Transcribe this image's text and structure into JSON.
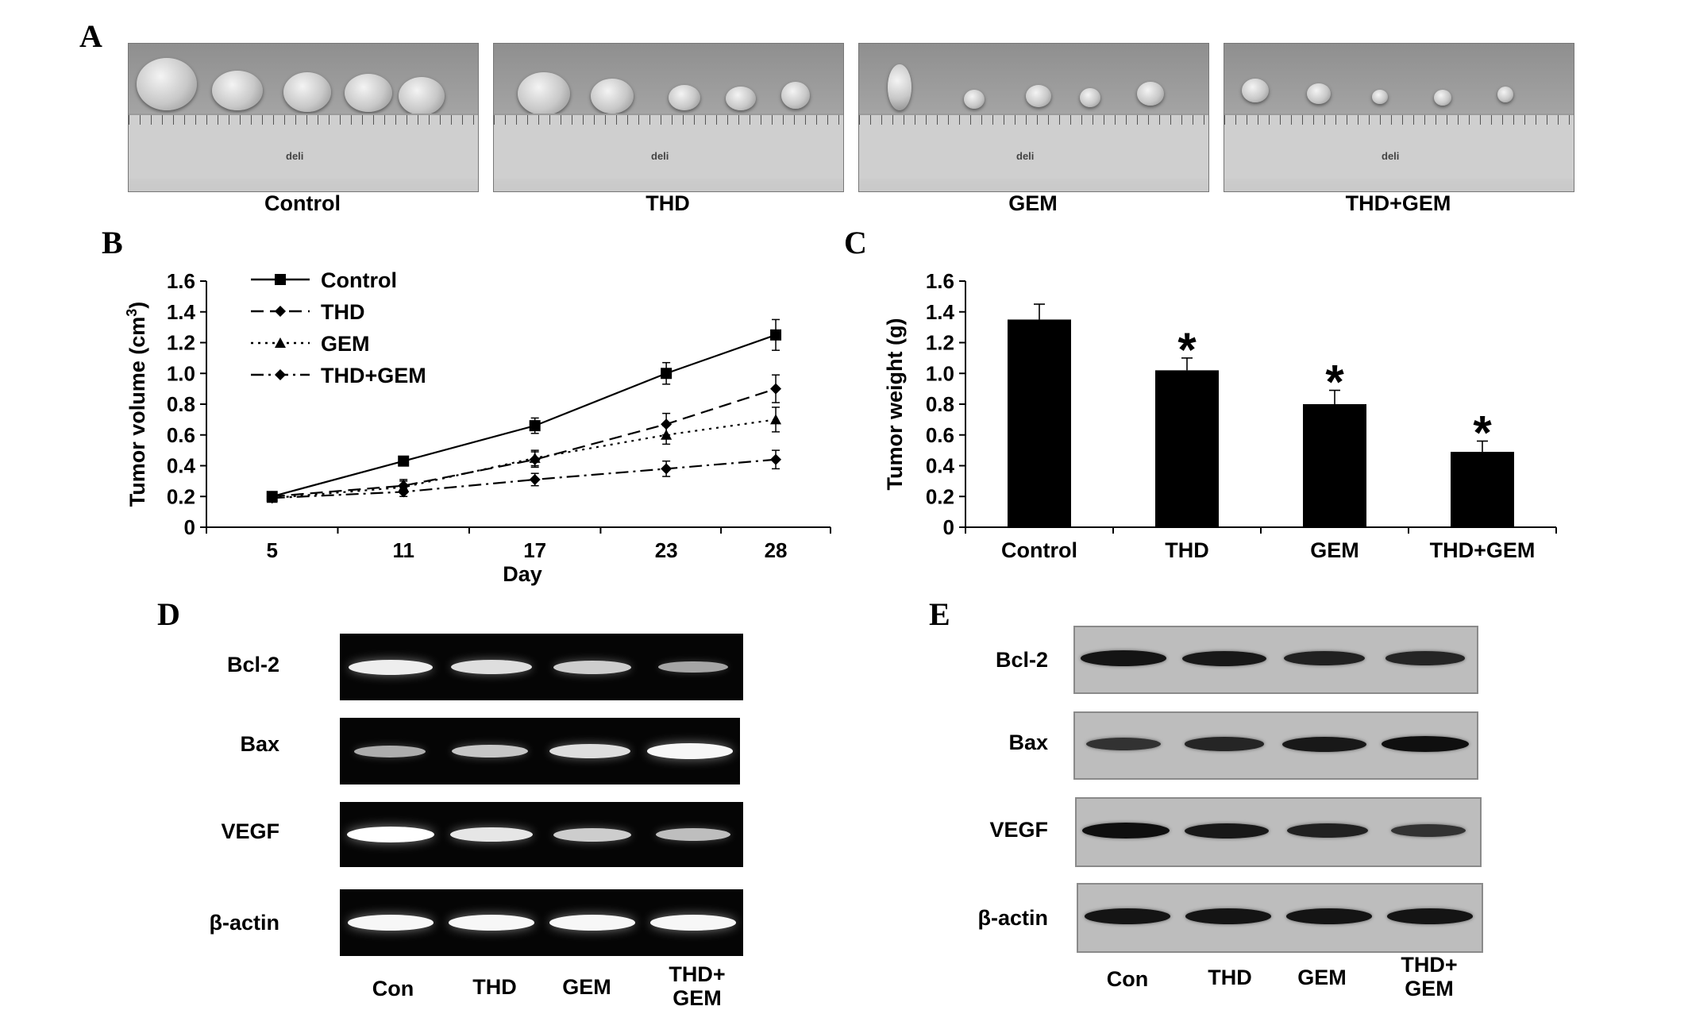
{
  "panels": {
    "a": "A",
    "b": "B",
    "c": "C",
    "d": "D",
    "e": "E"
  },
  "photos": {
    "labels": [
      "Control",
      "THD",
      "GEM",
      "THD+GEM"
    ],
    "ruler_brand": "deli"
  },
  "chart_data": [
    {
      "type": "line",
      "xlabel": "Day",
      "ylabel": "Tumor volume (cm",
      "ylabel_sup": "3",
      "ylabel_close": ")",
      "x": [
        5,
        11,
        17,
        23,
        28
      ],
      "xlim": [
        2,
        30.5
      ],
      "ylim": [
        0,
        1.6
      ],
      "yticks": [
        "0",
        "0.2",
        "0.4",
        "0.6",
        "0.8",
        "1.0",
        "1.2",
        "1.4",
        "1.6"
      ],
      "xticks": [
        "5",
        "11",
        "17",
        "23",
        "28"
      ],
      "legend_position": "top-left",
      "grid": false,
      "series": [
        {
          "name": "Control",
          "values": [
            0.2,
            0.43,
            0.66,
            1.0,
            1.25
          ],
          "errors": [
            0.02,
            0.03,
            0.05,
            0.07,
            0.1
          ],
          "style": "solid",
          "marker": "square"
        },
        {
          "name": "THD",
          "values": [
            0.2,
            0.27,
            0.44,
            0.67,
            0.9
          ],
          "errors": [
            0.02,
            0.04,
            0.05,
            0.07,
            0.09
          ],
          "style": "dashed",
          "marker": "diamond"
        },
        {
          "name": "GEM",
          "values": [
            0.19,
            0.26,
            0.45,
            0.6,
            0.7
          ],
          "errors": [
            0.02,
            0.04,
            0.05,
            0.06,
            0.08
          ],
          "style": "dotted",
          "marker": "triangle"
        },
        {
          "name": "THD+GEM",
          "values": [
            0.19,
            0.23,
            0.31,
            0.38,
            0.44
          ],
          "errors": [
            0.02,
            0.03,
            0.04,
            0.05,
            0.06
          ],
          "style": "dashdot",
          "marker": "diamond"
        }
      ]
    },
    {
      "type": "bar",
      "ylabel": "Tumor weight (g)",
      "categories": [
        "Control",
        "THD",
        "GEM",
        "THD+GEM"
      ],
      "values": [
        1.35,
        1.02,
        0.8,
        0.49
      ],
      "errors": [
        0.1,
        0.08,
        0.09,
        0.07
      ],
      "significance": [
        "",
        "*",
        "*",
        "*"
      ],
      "ylim": [
        0,
        1.6
      ],
      "yticks": [
        "0",
        "0.2",
        "0.4",
        "0.6",
        "0.8",
        "1.0",
        "1.2",
        "1.4",
        "1.6"
      ],
      "grid": false
    }
  ],
  "blots": {
    "rows": [
      "Bcl-2",
      "Bax",
      "VEGF",
      "β-actin"
    ],
    "lanes": [
      "Con",
      "THD",
      "GEM",
      "THD+ GEM"
    ],
    "rtpcr_band_intensity": [
      [
        0.9,
        0.8,
        0.7,
        0.45
      ],
      [
        0.5,
        0.65,
        0.8,
        0.95
      ],
      [
        1.0,
        0.85,
        0.7,
        0.6
      ],
      [
        0.95,
        0.95,
        0.95,
        0.95
      ]
    ],
    "western_band_intensity": [
      [
        0.95,
        0.9,
        0.8,
        0.75
      ],
      [
        0.6,
        0.75,
        0.9,
        1.0
      ],
      [
        1.0,
        0.9,
        0.8,
        0.6
      ],
      [
        0.95,
        0.95,
        0.95,
        0.95
      ]
    ]
  }
}
